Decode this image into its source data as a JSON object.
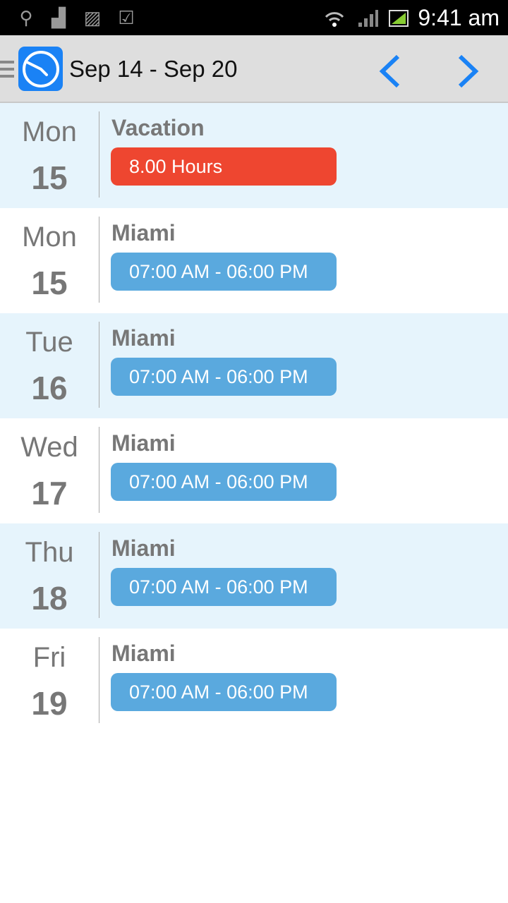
{
  "status_bar": {
    "time": "9:41 am",
    "icons": [
      "usb-icon",
      "android-icon",
      "image-icon",
      "checkbox-icon",
      "wifi-icon",
      "signal-icon",
      "battery-icon"
    ]
  },
  "header": {
    "title": "Sep 14 - Sep 20",
    "prev": "chevron-left-icon",
    "next": "chevron-right-icon"
  },
  "colors": {
    "accent": "#1a82f5",
    "vacation": "#ee4630",
    "shift": "#5aa9de",
    "alt_row": "#e6f4fc"
  },
  "entries": [
    {
      "day": "Mon",
      "date": "15",
      "title": "Vacation",
      "detail": "8.00 Hours",
      "type": "vacation"
    },
    {
      "day": "Mon",
      "date": "15",
      "title": "Miami",
      "detail": "07:00 AM - 06:00 PM",
      "type": "shift"
    },
    {
      "day": "Tue",
      "date": "16",
      "title": "Miami",
      "detail": "07:00 AM - 06:00 PM",
      "type": "shift"
    },
    {
      "day": "Wed",
      "date": "17",
      "title": "Miami",
      "detail": "07:00 AM - 06:00 PM",
      "type": "shift"
    },
    {
      "day": "Thu",
      "date": "18",
      "title": "Miami",
      "detail": "07:00 AM - 06:00 PM",
      "type": "shift"
    },
    {
      "day": "Fri",
      "date": "19",
      "title": "Miami",
      "detail": "07:00 AM - 06:00 PM",
      "type": "shift"
    }
  ]
}
